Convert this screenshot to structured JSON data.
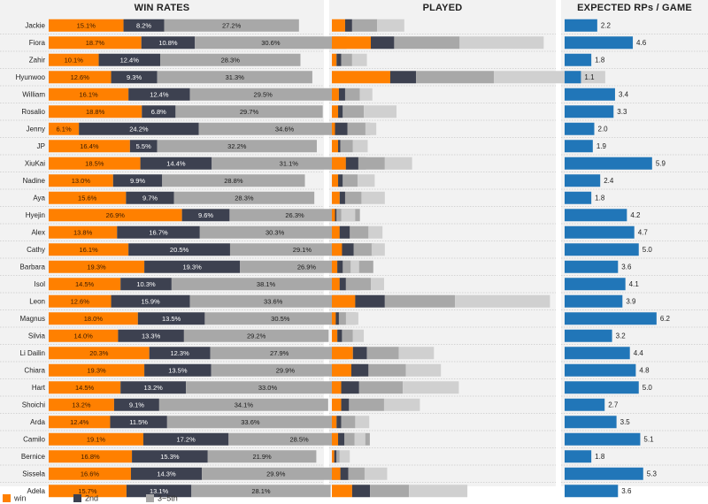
{
  "panels": {
    "win_rates_title": "WIN RATES",
    "played_title": "PLAYED",
    "rp_title": "EXPECTED RPs / GAME"
  },
  "legend": [
    {
      "label": "win",
      "color": "#ff8000"
    },
    {
      "label": "2nd",
      "color": "#3d4150"
    },
    {
      "label": "3~5th",
      "color": "#a8a8a8"
    }
  ],
  "colors": {
    "win": "#ff8000",
    "second": "#3d4150",
    "third": "#a8a8a8",
    "played_rest": "#d0d0d0",
    "rp": "#2176b8"
  },
  "chart_data": {
    "type": "bar",
    "categories": [
      "Jackie",
      "Fiora",
      "Zahir",
      "Hyunwoo",
      "William",
      "Rosalio",
      "Jenny",
      "JP",
      "XiuKai",
      "Nadine",
      "Aya",
      "Hyejin",
      "Alex",
      "Cathy",
      "Barbara",
      "Isol",
      "Leon",
      "Magnus",
      "Silvia",
      "Li Dailin",
      "Chiara",
      "Hart",
      "Shoichi",
      "Arda",
      "Camilo",
      "Bernice",
      "Sissela",
      "Adela"
    ],
    "win_rates": {
      "win": [
        15.1,
        18.7,
        10.1,
        12.6,
        16.1,
        18.8,
        6.1,
        16.4,
        18.5,
        13.0,
        15.6,
        26.9,
        13.8,
        16.1,
        19.3,
        14.5,
        12.6,
        18.0,
        14.0,
        20.3,
        19.3,
        14.5,
        13.2,
        12.4,
        19.1,
        16.8,
        16.6,
        15.7
      ],
      "second": [
        8.2,
        10.8,
        12.4,
        9.3,
        12.4,
        6.8,
        24.2,
        5.5,
        14.4,
        9.9,
        9.7,
        9.6,
        16.7,
        20.5,
        19.3,
        10.3,
        15.9,
        13.5,
        13.3,
        12.3,
        13.5,
        13.2,
        9.1,
        11.5,
        17.2,
        15.3,
        14.3,
        13.1
      ],
      "third": [
        27.2,
        30.6,
        28.3,
        31.3,
        29.5,
        29.7,
        34.6,
        32.2,
        31.1,
        28.8,
        28.3,
        26.3,
        30.3,
        29.1,
        26.9,
        38.1,
        33.6,
        30.5,
        29.2,
        27.9,
        29.9,
        33.0,
        34.1,
        33.6,
        28.5,
        21.9,
        29.9,
        28.1
      ]
    },
    "played": {
      "win": [
        1.7,
        5.0,
        0.6,
        7.5,
        0.9,
        0.8,
        0.4,
        0.8,
        1.8,
        0.8,
        1.0,
        0.4,
        1.0,
        1.3,
        0.7,
        1.0,
        3.0,
        0.5,
        0.7,
        2.7,
        2.5,
        1.2,
        1.2,
        0.6,
        0.8,
        0.3,
        1.1,
        2.6
      ],
      "second": [
        0.9,
        3.0,
        0.6,
        3.3,
        0.8,
        0.6,
        1.6,
        0.3,
        1.6,
        0.6,
        0.7,
        0.2,
        1.3,
        1.5,
        0.7,
        0.8,
        3.8,
        0.4,
        0.6,
        1.8,
        2.2,
        2.3,
        1.0,
        0.6,
        0.8,
        0.3,
        1.0,
        2.3
      ],
      "third": [
        3.2,
        8.4,
        1.4,
        10.0,
        1.9,
        2.7,
        2.3,
        1.6,
        3.4,
        1.9,
        2.1,
        0.6,
        2.4,
        2.3,
        1.0,
        3.2,
        9.0,
        0.9,
        1.4,
        4.1,
        4.8,
        5.6,
        4.5,
        1.8,
        1.3,
        0.4,
        2.1,
        5.0
      ],
      "rest": [
        3.5,
        10.8,
        1.9,
        14.3,
        1.6,
        4.2,
        1.4,
        1.9,
        3.5,
        2.2,
        3.0,
        1.8,
        1.8,
        1.7,
        1.1,
        1.7,
        12.2,
        1.6,
        1.4,
        4.5,
        4.5,
        7.2,
        4.6,
        1.8,
        1.4,
        1.3,
        2.9,
        7.5
      ]
    },
    "expected_rp": [
      2.2,
      4.6,
      1.8,
      1.1,
      3.4,
      3.3,
      2.0,
      1.9,
      5.9,
      2.4,
      1.8,
      4.2,
      4.7,
      5.0,
      3.6,
      4.1,
      3.9,
      6.2,
      3.2,
      4.4,
      4.8,
      5.0,
      2.7,
      3.5,
      5.1,
      1.8,
      5.3,
      3.6
    ],
    "xlabel": "",
    "ylabel": ""
  }
}
